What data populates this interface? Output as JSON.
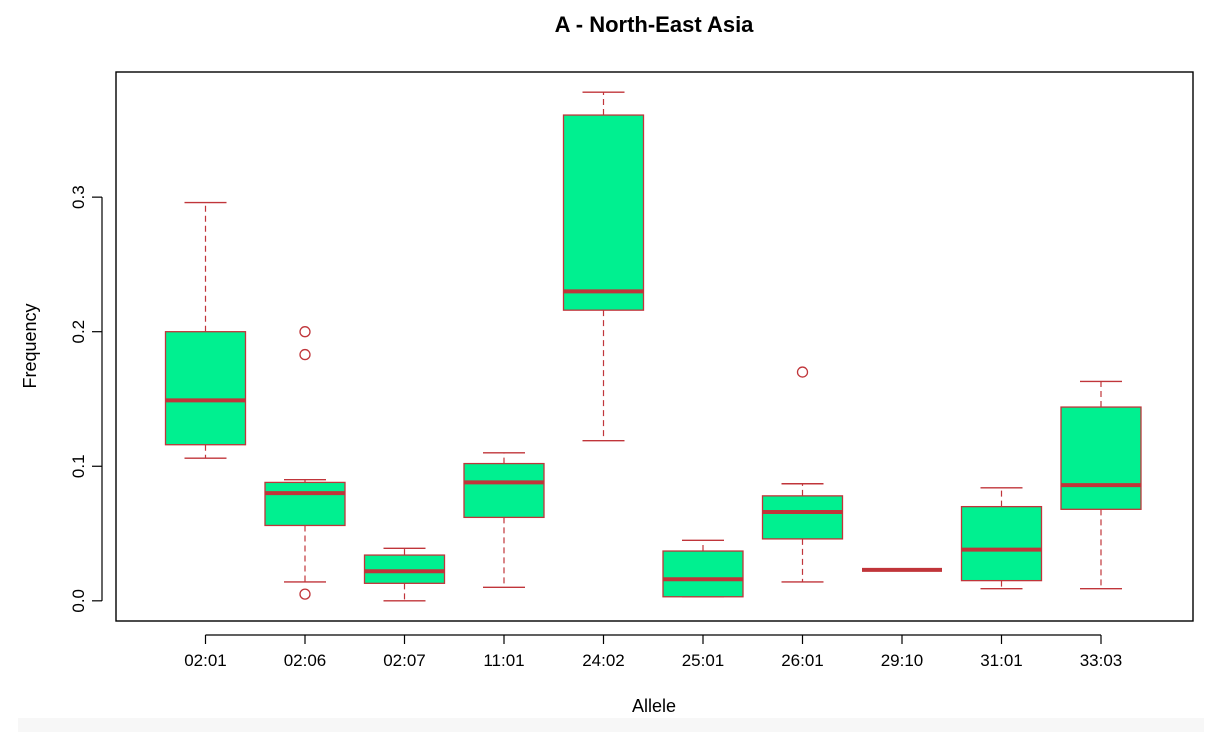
{
  "chart_data": {
    "type": "boxplot",
    "title": "A - North-East Asia",
    "xlabel": "Allele",
    "ylabel": "Frequency",
    "ylim": [
      -0.015,
      0.393
    ],
    "yticks": [
      "0.0",
      "0.1",
      "0.2",
      "0.3"
    ],
    "ytick_values": [
      0.0,
      0.1,
      0.2,
      0.3
    ],
    "categories": [
      "02:01",
      "02:06",
      "02:07",
      "11:01",
      "24:02",
      "25:01",
      "26:01",
      "29:10",
      "31:01",
      "33:03"
    ],
    "boxes": [
      {
        "category": "02:01",
        "whisker_low": 0.106,
        "q1": 0.116,
        "median": 0.149,
        "q3": 0.2,
        "whisker_high": 0.296,
        "outliers": []
      },
      {
        "category": "02:06",
        "whisker_low": 0.014,
        "q1": 0.056,
        "median": 0.08,
        "q3": 0.088,
        "whisker_high": 0.09,
        "outliers": [
          0.2,
          0.183,
          0.005
        ]
      },
      {
        "category": "02:07",
        "whisker_low": 0.0,
        "q1": 0.013,
        "median": 0.022,
        "q3": 0.034,
        "whisker_high": 0.039,
        "outliers": []
      },
      {
        "category": "11:01",
        "whisker_low": 0.01,
        "q1": 0.062,
        "median": 0.088,
        "q3": 0.102,
        "whisker_high": 0.11,
        "outliers": []
      },
      {
        "category": "24:02",
        "whisker_low": 0.119,
        "q1": 0.216,
        "median": 0.23,
        "q3": 0.361,
        "whisker_high": 0.378,
        "outliers": []
      },
      {
        "category": "25:01",
        "whisker_low": 0.003,
        "q1": 0.003,
        "median": 0.016,
        "q3": 0.037,
        "whisker_high": 0.045,
        "outliers": []
      },
      {
        "category": "26:01",
        "whisker_low": 0.014,
        "q1": 0.046,
        "median": 0.066,
        "q3": 0.078,
        "whisker_high": 0.087,
        "outliers": [
          0.17
        ]
      },
      {
        "category": "29:10",
        "whisker_low": 0.023,
        "q1": 0.023,
        "median": 0.023,
        "q3": 0.023,
        "whisker_high": 0.023,
        "outliers": []
      },
      {
        "category": "31:01",
        "whisker_low": 0.009,
        "q1": 0.015,
        "median": 0.038,
        "q3": 0.07,
        "whisker_high": 0.084,
        "outliers": []
      },
      {
        "category": "33:03",
        "whisker_low": 0.009,
        "q1": 0.068,
        "median": 0.086,
        "q3": 0.144,
        "whisker_high": 0.163,
        "outliers": []
      }
    ],
    "colors": {
      "box_fill": "#00f090",
      "line": "#c0353a",
      "axis": "#000000"
    },
    "grid": false,
    "legend": "none"
  }
}
